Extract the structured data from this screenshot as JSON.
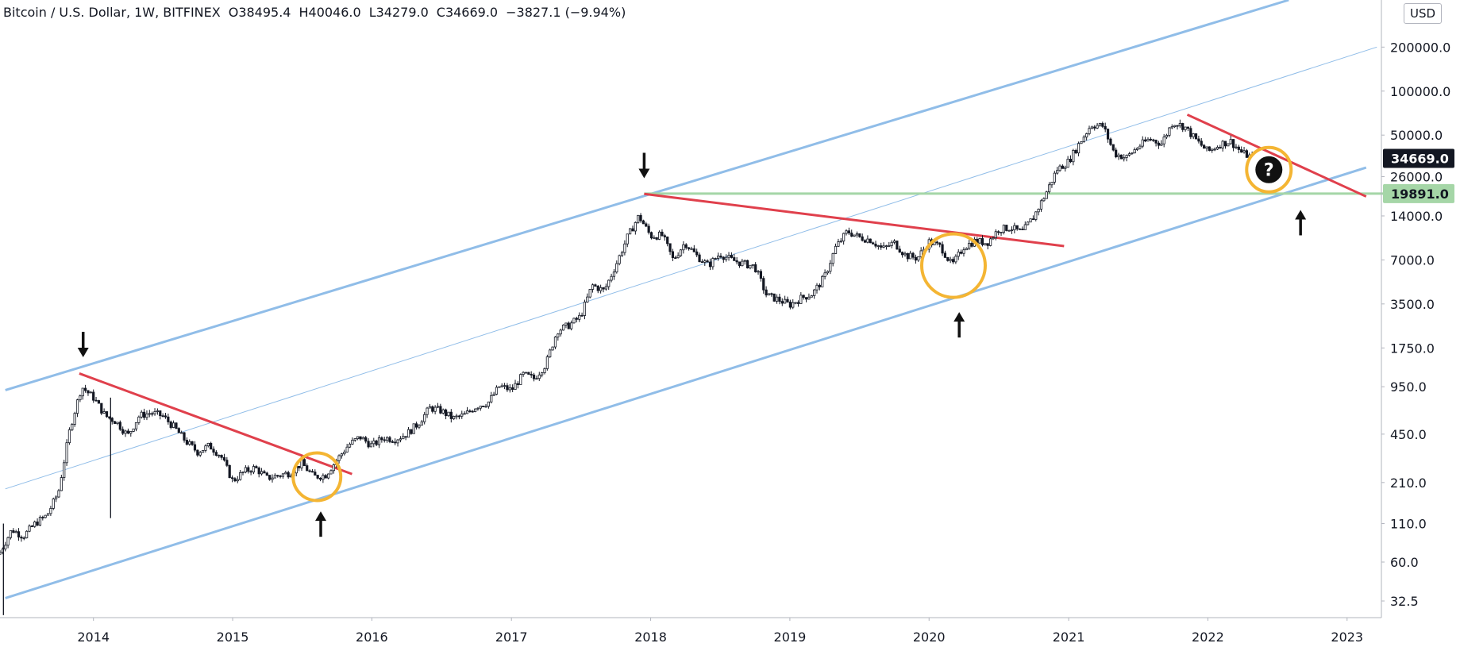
{
  "header": {
    "symbol": "Bitcoin / U.S. Dollar, 1W, BITFINEX",
    "open": "O38495.4",
    "high": "H40046.0",
    "low": "L34279.0",
    "close": "C34669.0",
    "change": "−3827.1 (−9.94%)"
  },
  "currency_label": "USD",
  "colors": {
    "channel": "#90bde8",
    "resistance": "#e0404c",
    "support_level": "#a5d6a7",
    "highlight_circle": "#f4b533",
    "candle": "#131722"
  },
  "chart_data": {
    "type": "candlestick",
    "title": "",
    "y_scale": "log",
    "ylim": [
      25,
      420000
    ],
    "xlim": [
      "2013-05",
      "2023-04"
    ],
    "y_ticks": [
      "32.5",
      "60.0",
      "110.0",
      "210.0",
      "450.0",
      "950.0",
      "1750.0",
      "3500.0",
      "7000.0",
      "14000.0",
      "26000.0",
      "50000.0",
      "100000.0",
      "200000.0"
    ],
    "x_ticks": [
      "2014",
      "2015",
      "2016",
      "2017",
      "2018",
      "2019",
      "2020",
      "2021",
      "2022",
      "2023"
    ],
    "price_labels": [
      {
        "id": "last-price",
        "value": "34669.0",
        "price": 34669
      },
      {
        "id": "support-price",
        "value": "19891.0",
        "price": 19891
      }
    ],
    "price_path": [
      [
        "2013-05-01",
        70
      ],
      [
        "2013-06-01",
        100
      ],
      [
        "2013-07-01",
        90
      ],
      [
        "2013-08-01",
        110
      ],
      [
        "2013-09-01",
        125
      ],
      [
        "2013-10-01",
        180
      ],
      [
        "2013-11-01",
        500
      ],
      [
        "2013-12-01",
        950
      ],
      [
        "2014-01-01",
        800
      ],
      [
        "2014-02-01",
        600
      ],
      [
        "2014-03-01",
        550
      ],
      [
        "2014-04-01",
        440
      ],
      [
        "2014-05-01",
        600
      ],
      [
        "2014-06-01",
        630
      ],
      [
        "2014-07-01",
        600
      ],
      [
        "2014-08-01",
        500
      ],
      [
        "2014-09-01",
        400
      ],
      [
        "2014-10-01",
        340
      ],
      [
        "2014-11-01",
        375
      ],
      [
        "2014-12-01",
        320
      ],
      [
        "2015-01-01",
        215
      ],
      [
        "2015-02-01",
        250
      ],
      [
        "2015-03-01",
        265
      ],
      [
        "2015-04-01",
        225
      ],
      [
        "2015-05-01",
        235
      ],
      [
        "2015-06-01",
        245
      ],
      [
        "2015-07-01",
        285
      ],
      [
        "2015-08-01",
        230
      ],
      [
        "2015-09-01",
        235
      ],
      [
        "2015-10-01",
        300
      ],
      [
        "2015-11-01",
        380
      ],
      [
        "2015-12-01",
        430
      ],
      [
        "2016-01-01",
        375
      ],
      [
        "2016-02-01",
        425
      ],
      [
        "2016-03-01",
        415
      ],
      [
        "2016-04-01",
        450
      ],
      [
        "2016-05-01",
        530
      ],
      [
        "2016-06-01",
        680
      ],
      [
        "2016-07-01",
        650
      ],
      [
        "2016-08-01",
        575
      ],
      [
        "2016-09-01",
        610
      ],
      [
        "2016-10-01",
        700
      ],
      [
        "2016-11-01",
        740
      ],
      [
        "2016-12-01",
        960
      ],
      [
        "2017-01-01",
        900
      ],
      [
        "2017-02-01",
        1150
      ],
      [
        "2017-03-01",
        1080
      ],
      [
        "2017-04-01",
        1350
      ],
      [
        "2017-05-01",
        2300
      ],
      [
        "2017-06-01",
        2500
      ],
      [
        "2017-07-01",
        2870
      ],
      [
        "2017-08-01",
        4700
      ],
      [
        "2017-09-01",
        4300
      ],
      [
        "2017-10-01",
        6400
      ],
      [
        "2017-11-01",
        10000
      ],
      [
        "2017-12-01",
        14000
      ],
      [
        "2018-01-01",
        10200
      ],
      [
        "2018-02-01",
        10300
      ],
      [
        "2018-03-01",
        7000
      ],
      [
        "2018-04-01",
        9200
      ],
      [
        "2018-05-01",
        7500
      ],
      [
        "2018-06-01",
        6400
      ],
      [
        "2018-07-01",
        7700
      ],
      [
        "2018-08-01",
        7000
      ],
      [
        "2018-09-01",
        6600
      ],
      [
        "2018-10-01",
        6300
      ],
      [
        "2018-11-01",
        4000
      ],
      [
        "2018-12-01",
        3750
      ],
      [
        "2019-01-01",
        3450
      ],
      [
        "2019-02-01",
        3850
      ],
      [
        "2019-03-01",
        4100
      ],
      [
        "2019-04-01",
        5300
      ],
      [
        "2019-05-01",
        8500
      ],
      [
        "2019-06-01",
        11000
      ],
      [
        "2019-07-01",
        10000
      ],
      [
        "2019-08-01",
        9600
      ],
      [
        "2019-09-01",
        8300
      ],
      [
        "2019-10-01",
        9200
      ],
      [
        "2019-11-01",
        7500
      ],
      [
        "2019-12-01",
        7200
      ],
      [
        "2020-01-01",
        9300
      ],
      [
        "2020-02-01",
        8600
      ],
      [
        "2020-03-01",
        6400
      ],
      [
        "2020-04-01",
        8600
      ],
      [
        "2020-05-01",
        9450
      ],
      [
        "2020-06-01",
        9140
      ],
      [
        "2020-07-01",
        11300
      ],
      [
        "2020-08-01",
        11650
      ],
      [
        "2020-09-01",
        10800
      ],
      [
        "2020-10-01",
        13800
      ],
      [
        "2020-11-01",
        19700
      ],
      [
        "2020-12-01",
        29000
      ],
      [
        "2021-01-01",
        33100
      ],
      [
        "2021-02-01",
        45200
      ],
      [
        "2021-03-01",
        58800
      ],
      [
        "2021-04-01",
        57700
      ],
      [
        "2021-05-01",
        37300
      ],
      [
        "2021-06-01",
        35000
      ],
      [
        "2021-07-01",
        41500
      ],
      [
        "2021-08-01",
        47100
      ],
      [
        "2021-09-01",
        43800
      ],
      [
        "2021-10-01",
        61300
      ],
      [
        "2021-11-01",
        57000
      ],
      [
        "2021-12-01",
        46300
      ],
      [
        "2022-01-01",
        38500
      ],
      [
        "2022-02-01",
        43200
      ],
      [
        "2022-03-01",
        45500
      ],
      [
        "2022-04-01",
        37700
      ],
      [
        "2022-05-01",
        34669
      ]
    ],
    "drawings": {
      "channel_upper": [
        [
          "2013-05-15",
          900
        ],
        [
          "2022-08-01",
          420000
        ]
      ],
      "channel_middle": [
        [
          "2013-05-15",
          190
        ],
        [
          "2023-03-20",
          200000
        ]
      ],
      "channel_lower": [
        [
          "2013-05-15",
          34
        ],
        [
          "2023-02-20",
          30000
        ]
      ],
      "resistance_lines": [
        [
          [
            "2013-11-25",
            1170
          ],
          [
            "2015-11-10",
            240
          ]
        ],
        [
          [
            "2017-12-15",
            19800
          ],
          [
            "2020-12-20",
            8700
          ]
        ],
        [
          [
            "2021-11-08",
            69000
          ],
          [
            "2023-02-20",
            19000
          ]
        ]
      ],
      "support_level": [
        [
          "2017-12-15",
          19891
        ],
        [
          "2023-04-30",
          19891
        ]
      ]
    },
    "annotations": {
      "arrows_down": [
        [
          "2013-12-05",
          1550
        ],
        [
          "2017-12-15",
          26000
        ]
      ],
      "arrows_up": [
        [
          "2015-08-20",
          130
        ],
        [
          "2020-03-20",
          3000
        ],
        [
          "2022-09-01",
          15000
        ]
      ],
      "circles": [
        [
          "2015-08-10",
          230
        ],
        [
          "2020-03-05",
          6400
        ],
        [
          "2022-06-10",
          29000
        ]
      ],
      "question_marker": [
        "2022-06-10",
        29000
      ]
    }
  }
}
